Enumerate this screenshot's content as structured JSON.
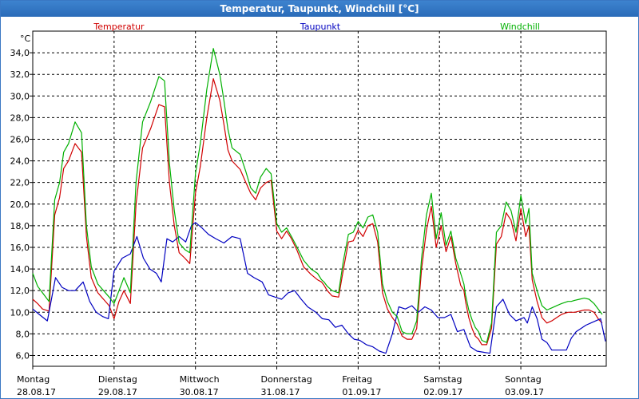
{
  "window": {
    "title": "Temperatur, Taupunkt, Windchill [°C]"
  },
  "colors": {
    "temperatur": "#d00000",
    "taupunkt": "#0000c0",
    "windchill": "#00b000",
    "grid": "#000000"
  },
  "chart_data": {
    "type": "line",
    "title": "Temperatur, Taupunkt, Windchill [°C]",
    "ylabel": "°C",
    "ylim": [
      5.0,
      36.0
    ],
    "xlim": [
      0,
      7.05
    ],
    "yticks": [
      6.0,
      8.0,
      10.0,
      12.0,
      14.0,
      16.0,
      18.0,
      20.0,
      22.0,
      24.0,
      26.0,
      28.0,
      30.0,
      32.0,
      34.0
    ],
    "ytick_labels": [
      "6,0",
      "8,0",
      "10,0",
      "12,0",
      "14,0",
      "16,0",
      "18,0",
      "20,0",
      "22,0",
      "24,0",
      "26,0",
      "28,0",
      "30,0",
      "32,0",
      "34,0"
    ],
    "days": [
      {
        "name": "Montag",
        "date": "28.08.17"
      },
      {
        "name": "Dienstag",
        "date": "29.08.17"
      },
      {
        "name": "Mittwoch",
        "date": "30.08.17"
      },
      {
        "name": "Donnerstag",
        "date": "31.08.17"
      },
      {
        "name": "Freitag",
        "date": "01.09.17"
      },
      {
        "name": "Samstag",
        "date": "02.09.17"
      },
      {
        "name": "Sonntag",
        "date": "03.09.17"
      }
    ],
    "grid": true,
    "series": [
      {
        "name": "Temperatur",
        "color": "#d00000",
        "x": [
          0,
          0.06,
          0.12,
          0.2,
          0.27,
          0.33,
          0.38,
          0.44,
          0.52,
          0.6,
          0.66,
          0.72,
          0.8,
          0.87,
          0.94,
          1.0,
          1.06,
          1.12,
          1.2,
          1.27,
          1.35,
          1.45,
          1.55,
          1.62,
          1.68,
          1.74,
          1.8,
          1.87,
          1.93,
          2.0,
          2.06,
          2.14,
          2.22,
          2.3,
          2.35,
          2.4,
          2.45,
          2.55,
          2.62,
          2.68,
          2.74,
          2.8,
          2.87,
          2.93,
          3.0,
          3.06,
          3.12,
          3.18,
          3.25,
          3.33,
          3.42,
          3.5,
          3.55,
          3.58,
          3.62,
          3.68,
          3.76,
          3.82,
          3.88,
          3.94,
          4.0,
          4.06,
          4.12,
          4.18,
          4.24,
          4.3,
          4.36,
          4.42,
          4.48,
          4.54,
          4.6,
          4.66,
          4.72,
          4.78,
          4.84,
          4.9,
          4.96,
          5.02,
          5.08,
          5.14,
          5.2,
          5.26,
          5.3,
          5.32,
          5.36,
          5.4,
          5.44,
          5.48,
          5.52,
          5.58,
          5.64,
          5.7,
          5.76,
          5.82,
          5.88,
          5.94,
          6.0,
          6.06,
          6.1,
          6.14,
          6.2,
          6.26,
          6.32,
          6.38,
          6.44,
          6.5,
          6.54,
          6.58,
          6.62,
          6.66,
          6.72,
          6.78,
          6.84,
          6.9,
          6.96,
          7.0
        ],
        "y": [
          11.2,
          10.8,
          10.3,
          10.1,
          19.0,
          20.6,
          23.3,
          24.0,
          25.6,
          24.8,
          17.0,
          13.2,
          11.8,
          11.2,
          10.6,
          9.4,
          11.0,
          12.0,
          10.8,
          20.0,
          25.2,
          27.0,
          29.2,
          29.0,
          22.0,
          18.0,
          15.5,
          15.0,
          14.5,
          21.0,
          23.5,
          28.0,
          31.6,
          29.6,
          27.4,
          25.0,
          24.0,
          23.2,
          22.0,
          21.0,
          20.4,
          21.5,
          22.0,
          22.2,
          17.5,
          16.8,
          17.5,
          16.8,
          15.7,
          14.2,
          13.5,
          13.0,
          12.8,
          12.5,
          12.0,
          11.5,
          11.4,
          14.0,
          16.5,
          16.6,
          17.6,
          17.0,
          18.0,
          18.2,
          16.5,
          11.8,
          10.3,
          9.5,
          8.9,
          7.8,
          7.5,
          7.5,
          8.5,
          14.0,
          17.6,
          19.8,
          16.0,
          18.0,
          15.6,
          17.0,
          14.5,
          12.5,
          12.0,
          11.0,
          9.5,
          8.5,
          7.8,
          7.5,
          7.0,
          7.0,
          8.5,
          16.3,
          17.0,
          19.2,
          18.5,
          16.6,
          19.6,
          17.0,
          18.0,
          13.0,
          11.0,
          9.5,
          9.0,
          9.2,
          9.5,
          9.8,
          9.9,
          10.0,
          10.0,
          10.0,
          10.1,
          10.2,
          10.2,
          10.0,
          9.3,
          9.0
        ]
      },
      {
        "name": "Taupunkt",
        "color": "#0000c0",
        "x": [
          0,
          0.08,
          0.18,
          0.28,
          0.36,
          0.44,
          0.52,
          0.62,
          0.7,
          0.78,
          0.86,
          0.93,
          1.0,
          1.1,
          1.2,
          1.28,
          1.36,
          1.44,
          1.52,
          1.58,
          1.65,
          1.72,
          1.8,
          1.88,
          1.95,
          2.0,
          2.08,
          2.16,
          2.25,
          2.35,
          2.45,
          2.55,
          2.64,
          2.72,
          2.82,
          2.9,
          2.98,
          3.06,
          3.14,
          3.22,
          3.3,
          3.38,
          3.48,
          3.56,
          3.64,
          3.72,
          3.8,
          3.88,
          3.95,
          4.02,
          4.1,
          4.18,
          4.26,
          4.34,
          4.42,
          4.5,
          4.58,
          4.66,
          4.74,
          4.82,
          4.9,
          4.98,
          5.06,
          5.14,
          5.22,
          5.3,
          5.38,
          5.46,
          5.54,
          5.62,
          5.7,
          5.78,
          5.86,
          5.94,
          6.0,
          6.04,
          6.08,
          6.14,
          6.2,
          6.26,
          6.32,
          6.38,
          6.44,
          6.5,
          6.56,
          6.62,
          6.68,
          6.74,
          6.8,
          6.86,
          6.92,
          6.98,
          7.04
        ],
        "y": [
          10.3,
          9.8,
          9.2,
          13.2,
          12.3,
          12.0,
          12.0,
          12.8,
          11.0,
          10.0,
          9.6,
          9.4,
          13.8,
          15.0,
          15.4,
          17.0,
          15.0,
          14.0,
          13.6,
          12.8,
          16.8,
          16.5,
          17.0,
          16.5,
          18.0,
          18.3,
          17.8,
          17.2,
          16.8,
          16.4,
          17.0,
          16.8,
          13.6,
          13.2,
          12.8,
          11.6,
          11.4,
          11.2,
          11.8,
          12.0,
          11.2,
          10.5,
          10.0,
          9.4,
          9.3,
          8.6,
          8.8,
          8.0,
          7.5,
          7.4,
          7.0,
          6.8,
          6.4,
          6.2,
          8.0,
          10.5,
          10.3,
          10.6,
          10.0,
          10.5,
          10.2,
          9.5,
          9.5,
          9.8,
          8.2,
          8.4,
          6.8,
          6.4,
          6.3,
          6.2,
          10.5,
          11.2,
          9.8,
          9.2,
          9.4,
          9.5,
          9.0,
          10.5,
          9.4,
          7.5,
          7.2,
          6.5,
          6.5,
          6.5,
          6.5,
          7.6,
          8.2,
          8.5,
          8.8,
          9.0,
          9.2,
          9.4,
          7.3
        ]
      },
      {
        "name": "Windchill",
        "color": "#00b000",
        "x": [
          0,
          0.06,
          0.12,
          0.2,
          0.27,
          0.33,
          0.38,
          0.44,
          0.52,
          0.6,
          0.66,
          0.72,
          0.8,
          0.87,
          0.94,
          1.0,
          1.06,
          1.12,
          1.2,
          1.27,
          1.35,
          1.45,
          1.55,
          1.62,
          1.68,
          1.74,
          1.8,
          1.87,
          1.93,
          2.0,
          2.06,
          2.14,
          2.22,
          2.3,
          2.35,
          2.4,
          2.45,
          2.55,
          2.62,
          2.68,
          2.74,
          2.8,
          2.87,
          2.93,
          3.0,
          3.06,
          3.12,
          3.18,
          3.25,
          3.33,
          3.42,
          3.5,
          3.55,
          3.58,
          3.62,
          3.68,
          3.76,
          3.82,
          3.88,
          3.94,
          4.0,
          4.06,
          4.12,
          4.18,
          4.24,
          4.3,
          4.36,
          4.42,
          4.48,
          4.54,
          4.6,
          4.66,
          4.72,
          4.78,
          4.84,
          4.9,
          4.96,
          5.02,
          5.08,
          5.14,
          5.2,
          5.26,
          5.3,
          5.32,
          5.36,
          5.4,
          5.44,
          5.48,
          5.52,
          5.58,
          5.64,
          5.7,
          5.76,
          5.82,
          5.88,
          5.94,
          6.0,
          6.06,
          6.1,
          6.14,
          6.2,
          6.26,
          6.32,
          6.38,
          6.44,
          6.5,
          6.54,
          6.58,
          6.62,
          6.66,
          6.72,
          6.78,
          6.84,
          6.9,
          6.96,
          7.0
        ],
        "y": [
          13.6,
          12.4,
          11.8,
          11.0,
          20.4,
          22.0,
          24.8,
          25.6,
          27.6,
          26.6,
          18.0,
          14.2,
          12.6,
          12.0,
          11.4,
          10.8,
          12.0,
          13.2,
          11.8,
          22.0,
          27.6,
          29.5,
          31.8,
          31.4,
          23.8,
          19.4,
          16.4,
          15.8,
          15.5,
          22.8,
          25.6,
          30.6,
          34.4,
          32.0,
          29.6,
          26.9,
          25.2,
          24.6,
          23.0,
          21.5,
          21.0,
          22.5,
          23.3,
          22.8,
          18.2,
          17.4,
          17.8,
          17.0,
          16.0,
          14.8,
          14.0,
          13.6,
          13.0,
          12.8,
          12.4,
          12.0,
          11.8,
          14.8,
          17.2,
          17.4,
          18.4,
          17.8,
          18.8,
          19.0,
          17.4,
          12.6,
          11.0,
          10.0,
          9.6,
          8.2,
          8.0,
          8.0,
          9.2,
          15.0,
          19.0,
          21.0,
          16.8,
          19.2,
          16.2,
          17.5,
          15.0,
          13.6,
          12.6,
          11.6,
          10.2,
          9.3,
          8.6,
          8.2,
          7.4,
          7.2,
          9.0,
          17.4,
          18.0,
          20.2,
          19.4,
          17.4,
          20.8,
          18.2,
          19.6,
          13.6,
          12.0,
          10.6,
          10.2,
          10.4,
          10.6,
          10.8,
          10.9,
          11.0,
          11.0,
          11.1,
          11.2,
          11.3,
          11.2,
          10.8,
          10.2,
          9.8
        ]
      }
    ]
  }
}
